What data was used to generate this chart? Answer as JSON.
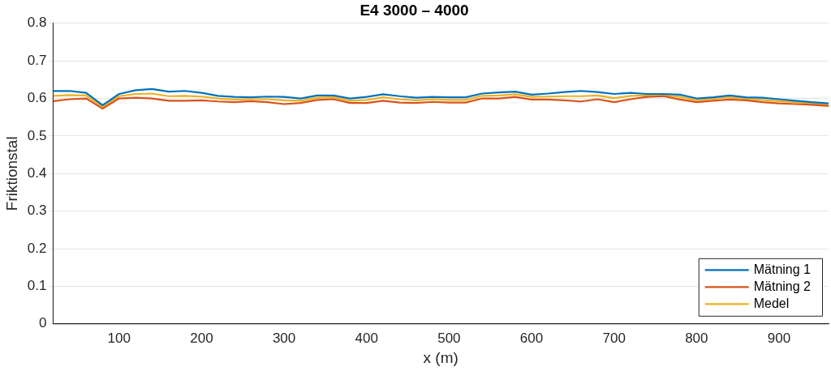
{
  "chart_data": {
    "type": "line",
    "title": "E4 3000 – 4000",
    "xlabel": "x (m)",
    "ylabel": "Friktionstal",
    "x": [
      20,
      40,
      60,
      80,
      100,
      120,
      140,
      160,
      180,
      200,
      220,
      240,
      260,
      280,
      300,
      320,
      340,
      360,
      380,
      400,
      420,
      440,
      460,
      480,
      500,
      520,
      540,
      560,
      580,
      600,
      620,
      640,
      660,
      680,
      700,
      720,
      740,
      760,
      780,
      800,
      820,
      840,
      860,
      880,
      900,
      920,
      940,
      960
    ],
    "series": [
      {
        "name": "Mätning 1",
        "color": "#0072bd",
        "values": [
          0.62,
          0.62,
          0.615,
          0.582,
          0.612,
          0.622,
          0.625,
          0.618,
          0.62,
          0.615,
          0.607,
          0.604,
          0.603,
          0.605,
          0.604,
          0.6,
          0.608,
          0.608,
          0.6,
          0.604,
          0.611,
          0.606,
          0.602,
          0.604,
          0.603,
          0.603,
          0.613,
          0.616,
          0.618,
          0.61,
          0.613,
          0.617,
          0.62,
          0.617,
          0.612,
          0.615,
          0.612,
          0.612,
          0.61,
          0.6,
          0.603,
          0.608,
          0.603,
          0.602,
          0.598,
          0.594,
          0.59,
          0.587
        ]
      },
      {
        "name": "Mätning 2",
        "color": "#d95319",
        "values": [
          0.593,
          0.598,
          0.6,
          0.573,
          0.6,
          0.602,
          0.6,
          0.594,
          0.594,
          0.595,
          0.592,
          0.59,
          0.593,
          0.59,
          0.585,
          0.588,
          0.596,
          0.598,
          0.588,
          0.588,
          0.594,
          0.589,
          0.588,
          0.591,
          0.589,
          0.589,
          0.6,
          0.6,
          0.604,
          0.597,
          0.597,
          0.595,
          0.592,
          0.598,
          0.59,
          0.598,
          0.604,
          0.606,
          0.597,
          0.59,
          0.594,
          0.597,
          0.595,
          0.59,
          0.587,
          0.585,
          0.583,
          0.58
        ]
      },
      {
        "name": "Medel",
        "color": "#edb120",
        "values": [
          0.607,
          0.609,
          0.608,
          0.578,
          0.606,
          0.612,
          0.613,
          0.606,
          0.607,
          0.605,
          0.6,
          0.597,
          0.598,
          0.598,
          0.595,
          0.594,
          0.602,
          0.603,
          0.594,
          0.596,
          0.603,
          0.598,
          0.595,
          0.598,
          0.596,
          0.596,
          0.607,
          0.608,
          0.611,
          0.604,
          0.605,
          0.606,
          0.606,
          0.608,
          0.601,
          0.607,
          0.608,
          0.609,
          0.604,
          0.595,
          0.599,
          0.603,
          0.599,
          0.596,
          0.593,
          0.59,
          0.587,
          0.584
        ]
      }
    ],
    "xlim": [
      20,
      960
    ],
    "xticks": [
      100,
      200,
      300,
      400,
      500,
      600,
      700,
      800,
      900
    ],
    "ylim": [
      0,
      0.8
    ],
    "yticks": [
      0,
      0.1,
      0.2,
      0.3,
      0.4,
      0.5,
      0.6,
      0.7,
      0.8
    ],
    "grid": "y",
    "legend": "bottom right",
    "marker": "none",
    "line_style": "solid"
  }
}
